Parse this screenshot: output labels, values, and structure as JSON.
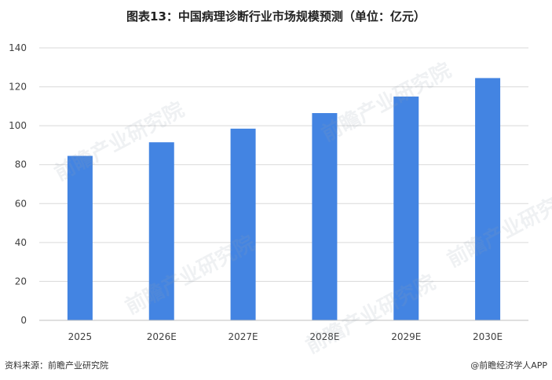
{
  "title": "图表13：中国病理诊断行业市场规模预测（单位：亿元）",
  "footer": {
    "source": "资料来源：前瞻产业研究院",
    "brand": "@前瞻经济学人APP"
  },
  "watermark_text": "前瞻产业研究院",
  "colors": {
    "bar": "#4384e2",
    "grid": "#d9d9d9",
    "axis": "#bfbfbf",
    "tick_text": "#404040"
  },
  "chart_data": {
    "type": "bar",
    "title": "图表13：中国病理诊断行业市场规模预测（单位：亿元）",
    "categories": [
      "2025",
      "2026E",
      "2027E",
      "2028E",
      "2029E",
      "2030E"
    ],
    "values": [
      84.5,
      91.5,
      98.5,
      106.5,
      115.0,
      124.5
    ],
    "ylim": [
      0,
      140
    ],
    "yticks": [
      0,
      20,
      40,
      60,
      80,
      100,
      120,
      140
    ],
    "grid": true,
    "legend": "none"
  }
}
